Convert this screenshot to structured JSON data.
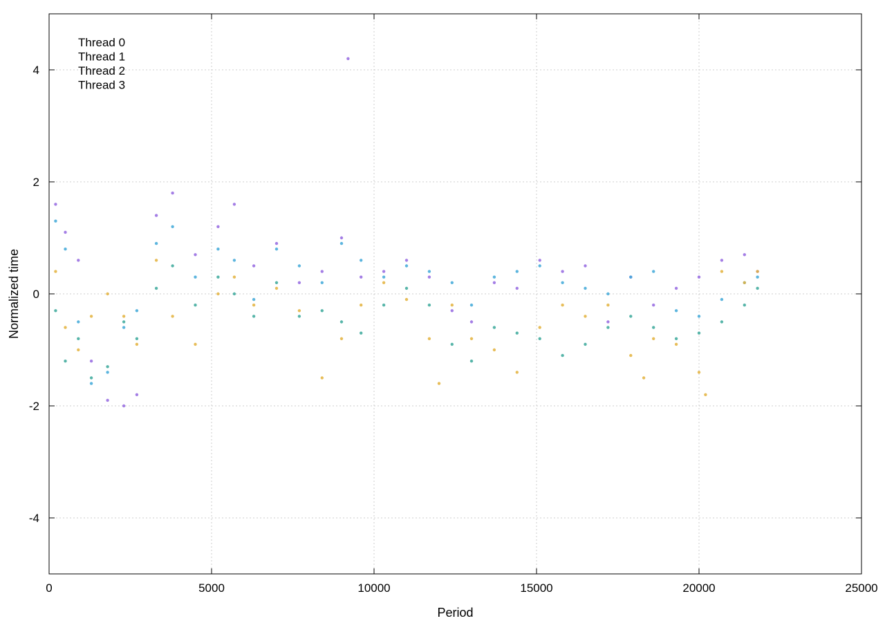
{
  "chart_data": {
    "type": "scatter",
    "title": "",
    "xlabel": "Period",
    "ylabel": "Normalized time",
    "xlim": [
      0,
      25000
    ],
    "ylim": [
      -5,
      5
    ],
    "xticks": [
      0,
      5000,
      10000,
      15000,
      20000,
      25000
    ],
    "yticks": [
      -4,
      -2,
      0,
      2,
      4
    ],
    "grid": true,
    "legend_position": "top-left",
    "marker_size_note": "tiny",
    "series": [
      {
        "name": "Thread 0",
        "color": "#9467e0",
        "points": [
          [
            200,
            1.6
          ],
          [
            500,
            1.1
          ],
          [
            900,
            0.6
          ],
          [
            1300,
            -1.2
          ],
          [
            1800,
            -1.9
          ],
          [
            2300,
            -2.0
          ],
          [
            2700,
            -1.8
          ],
          [
            3300,
            1.4
          ],
          [
            3800,
            1.8
          ],
          [
            4500,
            0.7
          ],
          [
            5200,
            1.2
          ],
          [
            5700,
            1.6
          ],
          [
            6300,
            0.5
          ],
          [
            7000,
            0.9
          ],
          [
            7700,
            0.2
          ],
          [
            8400,
            0.4
          ],
          [
            9000,
            1.0
          ],
          [
            9200,
            4.2
          ],
          [
            9600,
            0.3
          ],
          [
            10300,
            0.4
          ],
          [
            11000,
            0.6
          ],
          [
            11700,
            0.3
          ],
          [
            12400,
            -0.3
          ],
          [
            13000,
            -0.5
          ],
          [
            13700,
            0.2
          ],
          [
            14400,
            0.1
          ],
          [
            15100,
            0.6
          ],
          [
            15800,
            0.4
          ],
          [
            16500,
            0.5
          ],
          [
            17200,
            -0.5
          ],
          [
            17900,
            0.3
          ],
          [
            18600,
            -0.2
          ],
          [
            19300,
            0.1
          ],
          [
            20000,
            0.3
          ],
          [
            20700,
            0.6
          ],
          [
            21400,
            0.7
          ],
          [
            21800,
            0.4
          ]
        ]
      },
      {
        "name": "Thread 1",
        "color": "#3fa8d8",
        "points": [
          [
            200,
            1.3
          ],
          [
            500,
            0.8
          ],
          [
            900,
            -0.5
          ],
          [
            1300,
            -1.6
          ],
          [
            1800,
            -1.4
          ],
          [
            2300,
            -0.6
          ],
          [
            2700,
            -0.3
          ],
          [
            3300,
            0.9
          ],
          [
            3800,
            1.2
          ],
          [
            4500,
            0.3
          ],
          [
            5200,
            0.8
          ],
          [
            5700,
            0.6
          ],
          [
            6300,
            -0.1
          ],
          [
            7000,
            0.8
          ],
          [
            7700,
            0.5
          ],
          [
            8400,
            0.2
          ],
          [
            9000,
            0.9
          ],
          [
            9600,
            0.6
          ],
          [
            10300,
            0.3
          ],
          [
            11000,
            0.5
          ],
          [
            11700,
            0.4
          ],
          [
            12400,
            0.2
          ],
          [
            13000,
            -0.2
          ],
          [
            13700,
            0.3
          ],
          [
            14400,
            0.4
          ],
          [
            15100,
            0.5
          ],
          [
            15800,
            0.2
          ],
          [
            16500,
            0.1
          ],
          [
            17200,
            0.0
          ],
          [
            17900,
            0.3
          ],
          [
            18600,
            0.4
          ],
          [
            19300,
            -0.3
          ],
          [
            20000,
            -0.4
          ],
          [
            20700,
            -0.1
          ],
          [
            21400,
            0.2
          ],
          [
            21800,
            0.3
          ]
        ]
      },
      {
        "name": "Thread 2",
        "color": "#e3b23c",
        "points": [
          [
            200,
            0.4
          ],
          [
            500,
            -0.6
          ],
          [
            900,
            -1.0
          ],
          [
            1300,
            -0.4
          ],
          [
            1800,
            0.0
          ],
          [
            2300,
            -0.4
          ],
          [
            2700,
            -0.9
          ],
          [
            3300,
            0.6
          ],
          [
            3800,
            -0.4
          ],
          [
            4500,
            -0.9
          ],
          [
            5200,
            0.0
          ],
          [
            5700,
            0.3
          ],
          [
            6300,
            -0.2
          ],
          [
            7000,
            0.1
          ],
          [
            7700,
            -0.3
          ],
          [
            8400,
            -1.5
          ],
          [
            9000,
            -0.8
          ],
          [
            9600,
            -0.2
          ],
          [
            10300,
            0.2
          ],
          [
            11000,
            -0.1
          ],
          [
            11700,
            -0.8
          ],
          [
            12000,
            -1.6
          ],
          [
            12400,
            -0.2
          ],
          [
            13000,
            -0.8
          ],
          [
            13700,
            -1.0
          ],
          [
            14400,
            -1.4
          ],
          [
            15100,
            -0.6
          ],
          [
            15800,
            -0.2
          ],
          [
            16500,
            -0.4
          ],
          [
            17200,
            -0.2
          ],
          [
            17900,
            -1.1
          ],
          [
            18300,
            -1.5
          ],
          [
            18600,
            -0.8
          ],
          [
            19300,
            -0.9
          ],
          [
            20000,
            -1.4
          ],
          [
            20200,
            -1.8
          ],
          [
            20700,
            0.4
          ],
          [
            21400,
            0.2
          ],
          [
            21800,
            0.4
          ]
        ]
      },
      {
        "name": "Thread 3",
        "color": "#3aa89a",
        "points": [
          [
            200,
            -0.3
          ],
          [
            500,
            -1.2
          ],
          [
            900,
            -0.8
          ],
          [
            1300,
            -1.5
          ],
          [
            1800,
            -1.3
          ],
          [
            2300,
            -0.5
          ],
          [
            2700,
            -0.8
          ],
          [
            3300,
            0.1
          ],
          [
            3800,
            0.5
          ],
          [
            4500,
            -0.2
          ],
          [
            5200,
            0.3
          ],
          [
            5700,
            0.0
          ],
          [
            6300,
            -0.4
          ],
          [
            7000,
            0.2
          ],
          [
            7700,
            -0.4
          ],
          [
            8400,
            -0.3
          ],
          [
            9000,
            -0.5
          ],
          [
            9600,
            -0.7
          ],
          [
            10300,
            -0.2
          ],
          [
            11000,
            0.1
          ],
          [
            11700,
            -0.2
          ],
          [
            12400,
            -0.9
          ],
          [
            13000,
            -1.2
          ],
          [
            13700,
            -0.6
          ],
          [
            14400,
            -0.7
          ],
          [
            15100,
            -0.8
          ],
          [
            15800,
            -1.1
          ],
          [
            16500,
            -0.9
          ],
          [
            17200,
            -0.6
          ],
          [
            17900,
            -0.4
          ],
          [
            18600,
            -0.6
          ],
          [
            19300,
            -0.8
          ],
          [
            20000,
            -0.7
          ],
          [
            20700,
            -0.5
          ],
          [
            21400,
            -0.2
          ],
          [
            21800,
            0.1
          ]
        ]
      }
    ]
  }
}
